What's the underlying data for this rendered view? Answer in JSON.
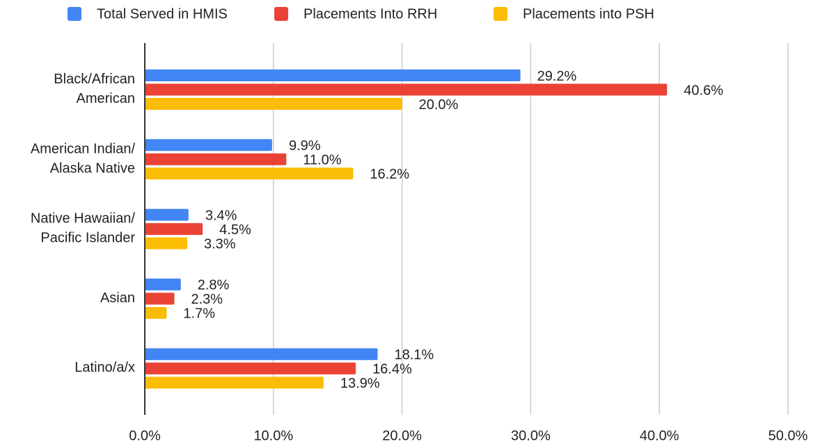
{
  "chart_data": {
    "type": "bar",
    "orientation": "horizontal",
    "categories": [
      [
        "Black/African",
        "American"
      ],
      [
        "American Indian/",
        "Alaska Native"
      ],
      [
        "Native Hawaiian/",
        "Pacific Islander"
      ],
      [
        "Asian"
      ],
      [
        "Latino/a/x"
      ]
    ],
    "series": [
      {
        "name": "Total Served in HMIS",
        "color": "#4285f4",
        "values": [
          29.2,
          9.9,
          3.4,
          2.8,
          18.1
        ],
        "value_labels": [
          "29.2%",
          "9.9%",
          "3.4%",
          "2.8%",
          "18.1%"
        ]
      },
      {
        "name": "Placements Into RRH",
        "color": "#ea4335",
        "values": [
          40.6,
          11.0,
          4.5,
          2.3,
          16.4
        ],
        "value_labels": [
          "40.6%",
          "11.0%",
          "4.5%",
          "2.3%",
          "16.4%"
        ]
      },
      {
        "name": "Placements into PSH",
        "color": "#fbbc04",
        "values": [
          20.0,
          16.2,
          3.3,
          1.7,
          13.9
        ],
        "value_labels": [
          "20.0%",
          "16.2%",
          "3.3%",
          "1.7%",
          "13.9%"
        ]
      }
    ],
    "xlim": [
      0,
      50
    ],
    "xticks": [
      {
        "value": 0,
        "label": "0.0%"
      },
      {
        "value": 10,
        "label": "10.0%"
      },
      {
        "value": 20,
        "label": "20.0%"
      },
      {
        "value": 30,
        "label": "30.0%"
      },
      {
        "value": 40,
        "label": "40.0%"
      },
      {
        "value": 50,
        "label": "50.0%"
      }
    ],
    "grid": true,
    "legend": "top"
  }
}
